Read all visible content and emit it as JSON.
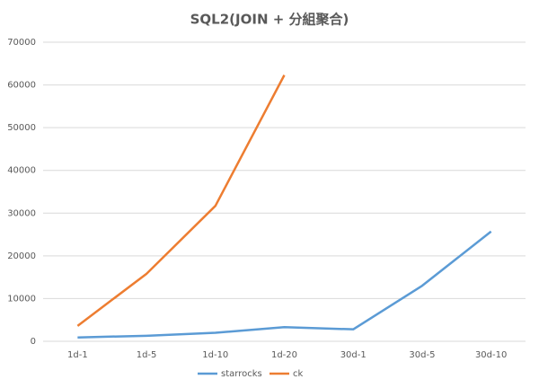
{
  "chart_data": {
    "type": "line",
    "title": "SQL2(JOIN + 分組聚合)",
    "categories": [
      "1d-1",
      "1d-5",
      "1d-10",
      "1d-20",
      "30d-1",
      "30d-5",
      "30d-10"
    ],
    "series": [
      {
        "name": "starrocks",
        "color": "#5b9bd5",
        "values": [
          900,
          1300,
          2000,
          3300,
          2800,
          13000,
          25700
        ]
      },
      {
        "name": "ck",
        "color": "#ed7d31",
        "values": [
          3600,
          15800,
          31700,
          62300,
          null,
          null,
          null
        ]
      }
    ],
    "ylim": [
      0,
      70000
    ],
    "yticks": [
      0,
      10000,
      20000,
      30000,
      40000,
      50000,
      60000,
      70000
    ],
    "grid": true,
    "legend": "bottom"
  }
}
